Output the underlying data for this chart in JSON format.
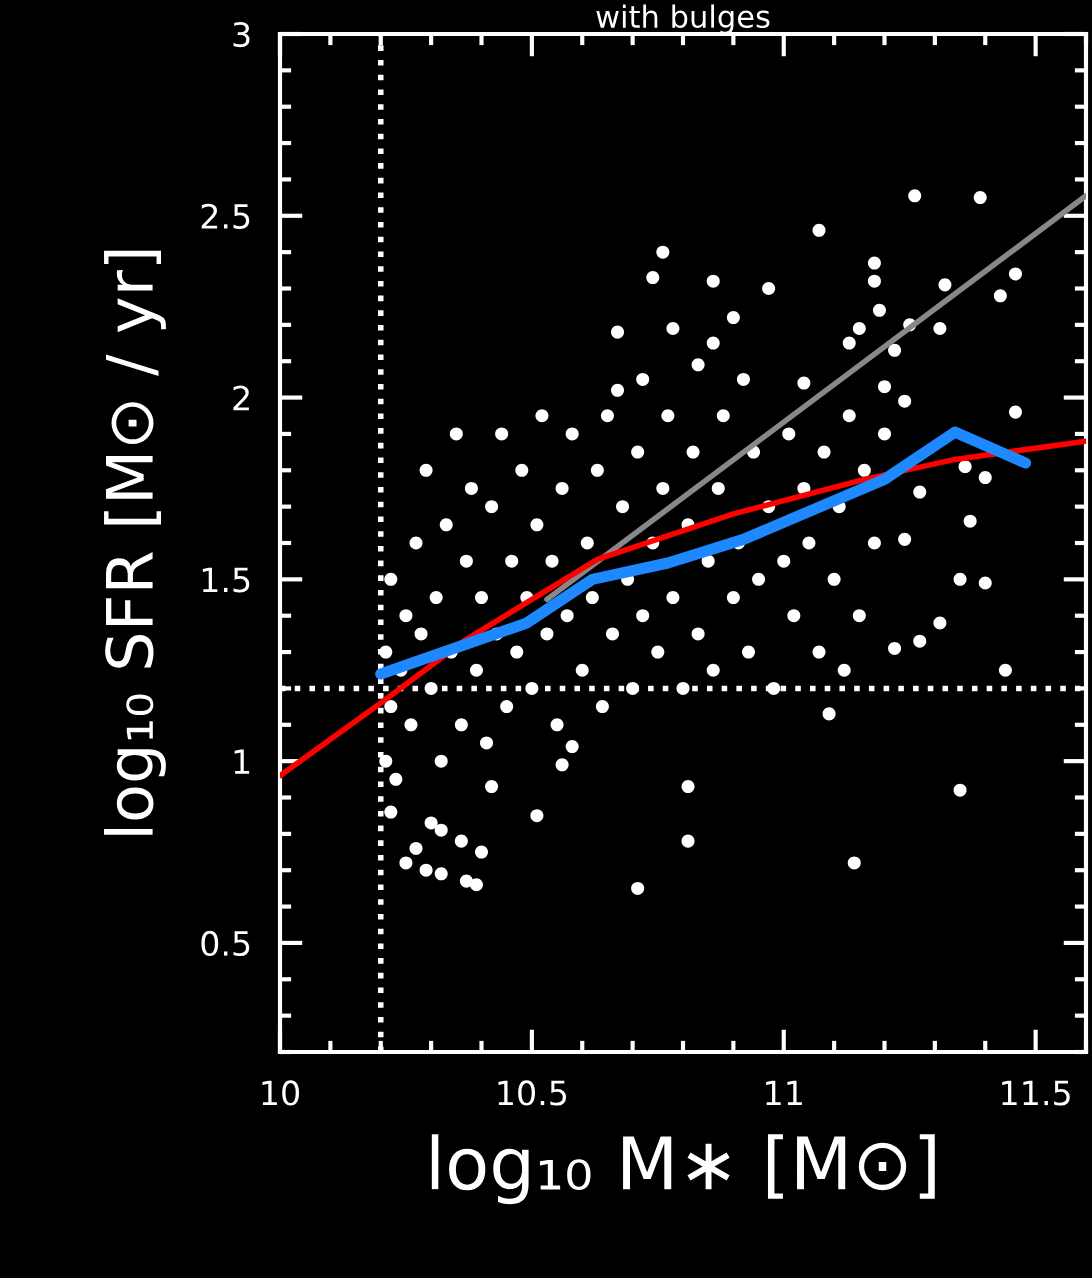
{
  "chart_data": {
    "type": "scatter",
    "title": "with bulges",
    "xlabel": "log₁₀ M∗ [M⊙]",
    "ylabel": "log₁₀ SFR [M⊙ / yr]",
    "xlim": [
      10,
      11.6
    ],
    "ylim": [
      0.2,
      3
    ],
    "xticks": [
      10,
      10.5,
      11,
      11.5
    ],
    "yticks": [
      0.5,
      1,
      1.5,
      2,
      2.5,
      3
    ],
    "grid": false,
    "ref_lines": [
      {
        "axis": "x",
        "value": 10.2,
        "color": "#ffffff",
        "line_style": "dotted"
      },
      {
        "axis": "y",
        "value": 1.2,
        "color": "#ffffff",
        "line_style": "dotted"
      }
    ],
    "series": [
      {
        "color": "#ffffff",
        "marker": "circle",
        "x": [
          11.26,
          11.39,
          11.07,
          10.76,
          10.74,
          10.86,
          10.97,
          11.18,
          11.18,
          11.46,
          11.43,
          11.32,
          10.67,
          10.78,
          10.9,
          10.86,
          11.25,
          11.31,
          11.19,
          11.15,
          11.13,
          11.22,
          10.83,
          10.92,
          10.72,
          10.67,
          11.04,
          11.2,
          11.46,
          11.36,
          11.4,
          11.37,
          11.35,
          11.4,
          11.31,
          11.27,
          11.22,
          11.44,
          11.12,
          11.09,
          11.27,
          11.24,
          11.24,
          10.81,
          10.81,
          10.71,
          11.14,
          11.35,
          10.51,
          10.39,
          10.25,
          10.29,
          10.32,
          10.37,
          10.27,
          10.32,
          10.36,
          10.4,
          10.3,
          10.56,
          10.58,
          10.42,
          10.22,
          10.21,
          10.21,
          10.22,
          10.22,
          10.23,
          10.24,
          10.25,
          10.26,
          10.27,
          10.28,
          10.29,
          10.3,
          10.31,
          10.32,
          10.33,
          10.34,
          10.35,
          10.36,
          10.37,
          10.38,
          10.39,
          10.4,
          10.41,
          10.42,
          10.43,
          10.44,
          10.45,
          10.46,
          10.47,
          10.48,
          10.49,
          10.5,
          10.51,
          10.52,
          10.53,
          10.54,
          10.55,
          10.56,
          10.57,
          10.58,
          10.6,
          10.61,
          10.62,
          10.63,
          10.64,
          10.65,
          10.66,
          10.68,
          10.69,
          10.7,
          10.71,
          10.72,
          10.74,
          10.75,
          10.76,
          10.77,
          10.78,
          10.8,
          10.81,
          10.82,
          10.83,
          10.85,
          10.86,
          10.87,
          10.88,
          10.9,
          10.91,
          10.93,
          10.94,
          10.95,
          10.97,
          10.98,
          11.0,
          11.01,
          11.02,
          11.04,
          11.05,
          11.07,
          11.08,
          11.1,
          11.11,
          11.13,
          11.15,
          11.16,
          11.18,
          11.2
        ],
        "values": [
          2.555,
          2.55,
          2.46,
          2.4,
          2.33,
          2.32,
          2.3,
          2.37,
          2.32,
          2.34,
          2.28,
          2.31,
          2.18,
          2.19,
          2.22,
          2.15,
          2.2,
          2.19,
          2.24,
          2.19,
          2.15,
          2.13,
          2.09,
          2.05,
          2.05,
          2.02,
          2.04,
          2.03,
          1.96,
          1.81,
          1.78,
          1.66,
          1.5,
          1.49,
          1.38,
          1.33,
          1.31,
          1.25,
          1.25,
          1.13,
          1.74,
          1.61,
          1.99,
          0.93,
          0.78,
          0.65,
          0.72,
          0.92,
          0.85,
          0.66,
          0.72,
          0.7,
          0.69,
          0.67,
          0.76,
          0.81,
          0.78,
          0.75,
          0.83,
          0.99,
          1.04,
          0.93,
          0.86,
          1.0,
          1.3,
          1.5,
          1.15,
          0.95,
          1.25,
          1.4,
          1.1,
          1.6,
          1.35,
          1.8,
          1.2,
          1.45,
          1.0,
          1.65,
          1.3,
          1.9,
          1.1,
          1.55,
          1.75,
          1.25,
          1.45,
          1.05,
          1.7,
          1.35,
          1.9,
          1.15,
          1.55,
          1.3,
          1.8,
          1.45,
          1.2,
          1.65,
          1.95,
          1.35,
          1.55,
          1.1,
          1.75,
          1.4,
          1.9,
          1.25,
          1.6,
          1.45,
          1.8,
          1.15,
          1.95,
          1.35,
          1.7,
          1.5,
          1.2,
          1.85,
          1.4,
          1.6,
          1.3,
          1.75,
          1.95,
          1.45,
          1.2,
          1.65,
          1.85,
          1.35,
          1.55,
          1.25,
          1.75,
          1.95,
          1.45,
          1.6,
          1.3,
          1.85,
          1.5,
          1.7,
          1.2,
          1.55,
          1.9,
          1.4,
          1.75,
          1.6,
          1.3,
          1.85,
          1.5,
          1.7,
          1.95,
          1.4,
          1.8,
          1.6,
          1.9
        ]
      },
      {
        "type": "line",
        "color": "#888888",
        "x": [
          10.53,
          11.6
        ],
        "values": [
          1.445,
          2.555
        ]
      },
      {
        "type": "line",
        "color": "#ff0000",
        "x": [
          10.0,
          10.2,
          10.37,
          10.63,
          10.9,
          11.16,
          11.34,
          11.6
        ],
        "values": [
          0.96,
          1.16,
          1.335,
          1.555,
          1.68,
          1.775,
          1.83,
          1.88
        ]
      },
      {
        "type": "line",
        "color": "#1e88ff",
        "x": [
          10.2,
          10.49,
          10.62,
          10.77,
          10.92,
          11.2,
          11.34,
          11.48
        ],
        "values": [
          1.24,
          1.38,
          1.5,
          1.545,
          1.61,
          1.775,
          1.905,
          1.82
        ]
      }
    ]
  }
}
